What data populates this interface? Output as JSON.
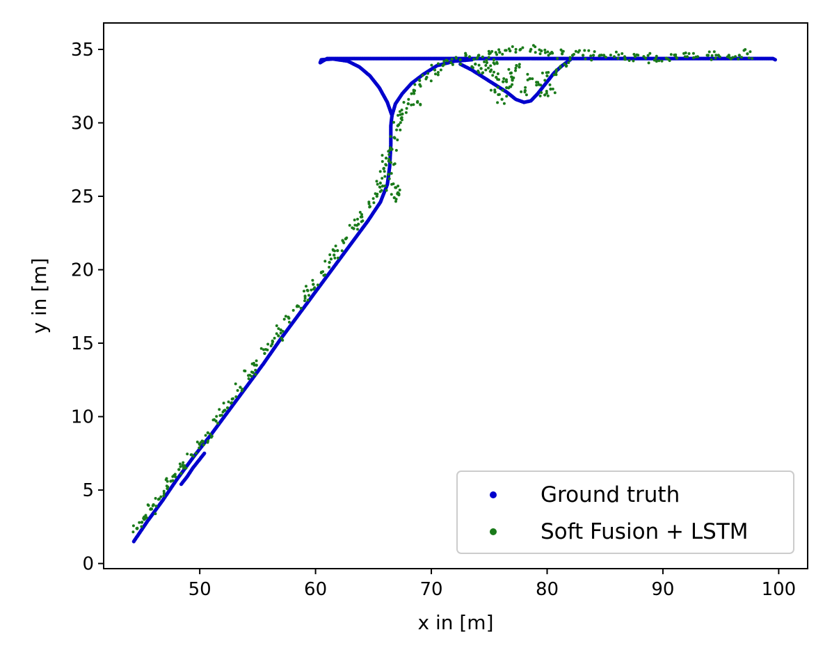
{
  "chart_data": {
    "type": "scatter",
    "title": "",
    "xlabel": "x in [m]",
    "ylabel": "y in [m]",
    "xlim": [
      41.7,
      102.5
    ],
    "ylim": [
      -0.35,
      36.8
    ],
    "xticks": [
      50,
      60,
      70,
      80,
      90,
      100
    ],
    "yticks": [
      0,
      5,
      10,
      15,
      20,
      25,
      30,
      35
    ],
    "grid": false,
    "legend_position": "lower-right",
    "series": [
      {
        "name": "Ground truth",
        "color": "#0000cc",
        "marker": "dot",
        "points": [
          [
            44.3,
            1.5
          ],
          [
            45.5,
            2.9
          ],
          [
            46.8,
            4.3
          ],
          [
            48.0,
            5.7
          ],
          [
            49.5,
            7.3
          ],
          [
            51.0,
            8.8
          ],
          [
            52.5,
            10.4
          ],
          [
            54.0,
            12.0
          ],
          [
            55.5,
            13.6
          ],
          [
            57.0,
            15.3
          ],
          [
            58.5,
            16.9
          ],
          [
            60.0,
            18.5
          ],
          [
            61.5,
            20.1
          ],
          [
            63.0,
            21.7
          ],
          [
            64.5,
            23.3
          ],
          [
            65.6,
            24.6
          ],
          [
            66.2,
            25.8
          ],
          [
            66.4,
            27.0
          ],
          [
            66.5,
            28.5
          ],
          [
            66.5,
            29.8
          ],
          [
            66.6,
            30.5
          ],
          [
            66.9,
            31.3
          ],
          [
            67.5,
            32.0
          ],
          [
            68.3,
            32.7
          ],
          [
            69.3,
            33.3
          ],
          [
            70.5,
            33.9
          ],
          [
            72.0,
            34.2
          ],
          [
            73.5,
            34.3
          ],
          [
            66.6,
            30.5
          ],
          [
            66.2,
            31.4
          ],
          [
            65.5,
            32.4
          ],
          [
            64.7,
            33.2
          ],
          [
            63.8,
            33.8
          ],
          [
            62.8,
            34.2
          ],
          [
            61.5,
            34.35
          ],
          [
            60.5,
            34.3
          ],
          [
            60.4,
            34.1
          ],
          [
            61.0,
            34.38
          ],
          [
            62.5,
            34.38
          ],
          [
            64.0,
            34.38
          ],
          [
            65.5,
            34.38
          ],
          [
            67.0,
            34.38
          ],
          [
            68.5,
            34.38
          ],
          [
            70.0,
            34.38
          ],
          [
            71.5,
            34.38
          ],
          [
            73.0,
            34.38
          ],
          [
            74.5,
            34.38
          ],
          [
            76.0,
            34.38
          ],
          [
            77.5,
            34.38
          ],
          [
            79.0,
            34.38
          ],
          [
            80.5,
            34.38
          ],
          [
            82.0,
            34.38
          ],
          [
            83.5,
            34.38
          ],
          [
            85.0,
            34.38
          ],
          [
            86.5,
            34.38
          ],
          [
            88.0,
            34.38
          ],
          [
            89.5,
            34.38
          ],
          [
            91.0,
            34.38
          ],
          [
            92.5,
            34.38
          ],
          [
            94.0,
            34.38
          ],
          [
            95.5,
            34.38
          ],
          [
            97.0,
            34.38
          ],
          [
            98.5,
            34.38
          ],
          [
            99.5,
            34.38
          ],
          [
            99.7,
            34.3
          ],
          [
            72.5,
            34.0
          ],
          [
            73.5,
            33.6
          ],
          [
            74.5,
            33.1
          ],
          [
            75.5,
            32.6
          ],
          [
            76.5,
            32.1
          ],
          [
            77.3,
            31.6
          ],
          [
            78.0,
            31.4
          ],
          [
            78.6,
            31.5
          ],
          [
            79.2,
            32.0
          ],
          [
            79.9,
            32.7
          ],
          [
            80.6,
            33.4
          ],
          [
            81.3,
            33.9
          ],
          [
            82.0,
            34.3
          ],
          [
            48.4,
            5.4
          ],
          [
            48.9,
            5.9
          ],
          [
            49.4,
            6.5
          ],
          [
            49.9,
            7.0
          ],
          [
            50.4,
            7.5
          ]
        ]
      },
      {
        "name": "Soft Fusion + LSTM",
        "color": "#1a7a1a",
        "marker": "dot",
        "points": [
          [
            44.6,
            2.4
          ],
          [
            45.2,
            3.0
          ],
          [
            45.8,
            3.7
          ],
          [
            46.5,
            4.4
          ],
          [
            47.2,
            5.1
          ],
          [
            47.9,
            5.9
          ],
          [
            48.6,
            6.6
          ],
          [
            49.3,
            7.4
          ],
          [
            50.0,
            8.1
          ],
          [
            50.7,
            8.9
          ],
          [
            51.4,
            9.7
          ],
          [
            52.1,
            10.4
          ],
          [
            52.8,
            11.2
          ],
          [
            53.5,
            12.0
          ],
          [
            54.2,
            12.8
          ],
          [
            54.9,
            13.5
          ],
          [
            55.6,
            14.3
          ],
          [
            56.3,
            15.1
          ],
          [
            57.0,
            15.9
          ],
          [
            57.7,
            16.7
          ],
          [
            58.4,
            17.5
          ],
          [
            59.1,
            18.2
          ],
          [
            59.8,
            19.0
          ],
          [
            60.5,
            19.8
          ],
          [
            61.2,
            20.5
          ],
          [
            61.9,
            21.3
          ],
          [
            62.6,
            22.1
          ],
          [
            63.3,
            22.8
          ],
          [
            64.0,
            23.6
          ],
          [
            64.7,
            24.3
          ],
          [
            65.3,
            25.0
          ],
          [
            65.8,
            25.7
          ],
          [
            66.3,
            26.5
          ],
          [
            66.5,
            27.3
          ],
          [
            66.6,
            28.2
          ],
          [
            66.8,
            29.0
          ],
          [
            67.1,
            29.8
          ],
          [
            67.5,
            30.6
          ],
          [
            68.0,
            31.3
          ],
          [
            68.5,
            32.0
          ],
          [
            69.0,
            32.6
          ],
          [
            69.6,
            33.1
          ],
          [
            70.3,
            33.6
          ],
          [
            71.0,
            33.9
          ],
          [
            71.7,
            34.1
          ],
          [
            72.5,
            34.3
          ],
          [
            73.3,
            34.5
          ],
          [
            74.1,
            34.6
          ],
          [
            75.0,
            34.7
          ],
          [
            75.9,
            34.8
          ],
          [
            76.8,
            34.9
          ],
          [
            77.7,
            35.0
          ],
          [
            78.6,
            35.0
          ],
          [
            79.5,
            34.9
          ],
          [
            80.4,
            34.8
          ],
          [
            81.3,
            34.7
          ],
          [
            82.2,
            34.6
          ],
          [
            83.1,
            34.6
          ],
          [
            84.0,
            34.6
          ],
          [
            84.9,
            34.6
          ],
          [
            85.8,
            34.5
          ],
          [
            86.7,
            34.5
          ],
          [
            87.6,
            34.5
          ],
          [
            88.5,
            34.4
          ],
          [
            89.4,
            34.4
          ],
          [
            90.3,
            34.4
          ],
          [
            91.2,
            34.4
          ],
          [
            92.1,
            34.5
          ],
          [
            93.0,
            34.5
          ],
          [
            93.9,
            34.6
          ],
          [
            94.8,
            34.6
          ],
          [
            95.7,
            34.6
          ],
          [
            96.6,
            34.6
          ],
          [
            97.3,
            34.7
          ],
          [
            66.1,
            27.6
          ],
          [
            65.9,
            26.9
          ],
          [
            65.6,
            25.9
          ],
          [
            66.9,
            25.6
          ],
          [
            67.2,
            25.1
          ],
          [
            66.8,
            24.9
          ],
          [
            67.4,
            30.3
          ],
          [
            68.8,
            31.4
          ],
          [
            74.3,
            33.7
          ],
          [
            75.1,
            33.5
          ],
          [
            75.6,
            33.1
          ],
          [
            76.2,
            32.8
          ],
          [
            76.5,
            32.4
          ],
          [
            77.0,
            32.9
          ],
          [
            76.1,
            31.6
          ],
          [
            75.5,
            32.1
          ],
          [
            78.5,
            33.0
          ],
          [
            79.3,
            32.6
          ],
          [
            80.0,
            33.2
          ],
          [
            80.8,
            33.6
          ],
          [
            81.5,
            34.0
          ],
          [
            77.6,
            33.8
          ],
          [
            76.9,
            33.4
          ],
          [
            78.1,
            32.2
          ],
          [
            79.8,
            31.9
          ],
          [
            80.3,
            32.3
          ],
          [
            74.8,
            34.1
          ],
          [
            73.8,
            34.0
          ],
          [
            75.4,
            34.3
          ],
          [
            45.0,
            2.8
          ],
          [
            46.0,
            4.0
          ],
          [
            47.5,
            5.6
          ],
          [
            48.2,
            6.4
          ],
          [
            50.3,
            8.3
          ],
          [
            52.4,
            10.6
          ],
          [
            54.6,
            13.0
          ],
          [
            56.8,
            15.5
          ],
          [
            59.3,
            18.6
          ],
          [
            61.6,
            21.0
          ],
          [
            63.7,
            23.1
          ]
        ]
      }
    ]
  }
}
